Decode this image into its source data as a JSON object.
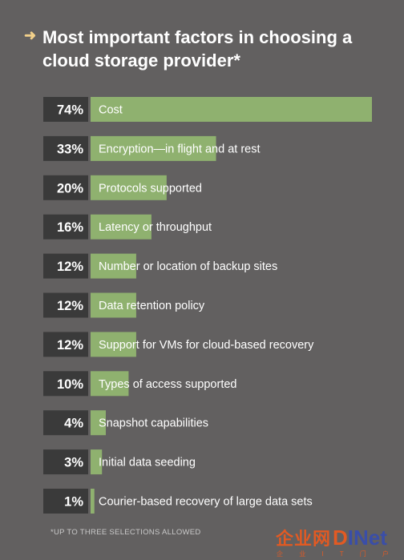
{
  "title": "Most important factors in choosing a cloud storage provider*",
  "footnote": "*UP TO THREE SELECTIONS ALLOWED",
  "watermark": {
    "brand_cn": "企业网",
    "brand_d": "D",
    "brand_inet": "INet",
    "tagline": "企 业 I T 门 户"
  },
  "colors": {
    "background": "#626060",
    "bar": "#8fb16f",
    "value_box": "#3a3a3a",
    "text": "#ffffff"
  },
  "chart_data": {
    "type": "bar",
    "orientation": "horizontal",
    "categories": [
      "Cost",
      "Encryption—in flight and at rest",
      "Protocols supported",
      "Latency or throughput",
      "Number or location of backup sites",
      "Data retention policy",
      "Support for VMs for cloud-based recovery",
      "Types of access supported",
      "Snapshot capabilities",
      "Initial data seeding",
      "Courier-based recovery of large data sets"
    ],
    "values": [
      74,
      33,
      20,
      16,
      12,
      12,
      12,
      10,
      4,
      3,
      1
    ],
    "value_labels": [
      "74%",
      "33%",
      "20%",
      "16%",
      "12%",
      "12%",
      "12%",
      "10%",
      "4%",
      "3%",
      "1%"
    ],
    "xlim": [
      0,
      74
    ],
    "grid": false,
    "legend": "none"
  }
}
